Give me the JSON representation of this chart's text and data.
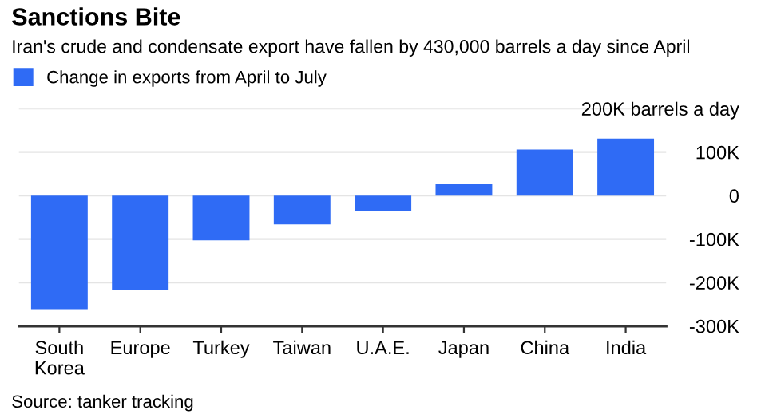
{
  "chart_data": {
    "type": "bar",
    "title": "Sanctions Bite",
    "subtitle": "Iran's crude and condensate export have fallen by 430,000 barrels a day since April",
    "categories": [
      "South\nKorea",
      "Europe",
      "Turkey",
      "Taiwan",
      "U.A.E.",
      "Japan",
      "China",
      "India"
    ],
    "series": [
      {
        "name": "Change in exports from April to July",
        "color": "#2f6bf5",
        "values": [
          -261000,
          -216000,
          -103000,
          -66000,
          -35000,
          26000,
          106000,
          131000
        ]
      }
    ],
    "ylim": [
      -300000,
      200000
    ],
    "yticks": [
      {
        "value": -300000,
        "label": "-300K"
      },
      {
        "value": -200000,
        "label": "-200K"
      },
      {
        "value": -100000,
        "label": "-100K"
      },
      0,
      {
        "value": 100000,
        "label": "100K"
      },
      {
        "value": 200000,
        "label": "200K barrels a day"
      }
    ],
    "grid": "y",
    "legend": "top left",
    "annotations": [
      "Source: tanker tracking"
    ]
  }
}
